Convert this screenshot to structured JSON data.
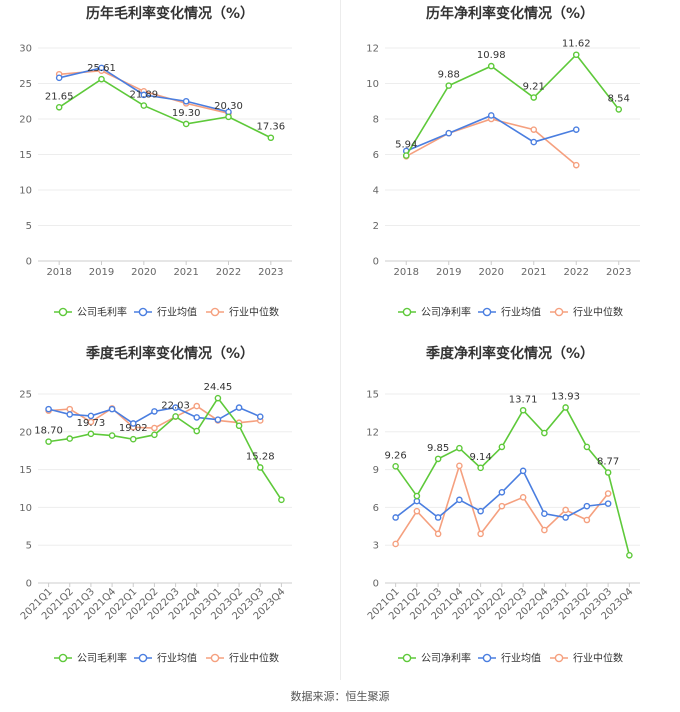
{
  "colors": {
    "company": "#5ec93a",
    "avg": "#4a7ee0",
    "median": "#f5a07f"
  },
  "legend": {
    "gross": [
      "公司毛利率",
      "行业均值",
      "行业中位数"
    ],
    "net": [
      "公司净利率",
      "行业均值",
      "行业中位数"
    ]
  },
  "footer": "数据来源：恒生聚源",
  "chart_data": [
    {
      "type": "line",
      "title": "历年毛利率变化情况（%）",
      "categories": [
        "2018",
        "2019",
        "2020",
        "2021",
        "2022",
        "2023"
      ],
      "ylim": [
        0,
        30
      ],
      "yticks": [
        0,
        5,
        10,
        15,
        20,
        25,
        30
      ],
      "series": [
        {
          "name": "公司毛利率",
          "values": [
            21.65,
            25.61,
            21.89,
            19.3,
            20.3,
            17.36
          ],
          "labels": [
            "21.65",
            "25.61",
            "21.89",
            "19.30",
            "20.30",
            "17.36"
          ]
        },
        {
          "name": "行业均值",
          "values": [
            25.8,
            27.2,
            23.4,
            22.5,
            21.0,
            null
          ]
        },
        {
          "name": "行业中位数",
          "values": [
            26.3,
            26.8,
            23.9,
            22.2,
            20.8,
            null
          ]
        }
      ],
      "legend_position": "bottom",
      "grid": "horizontal"
    },
    {
      "type": "line",
      "title": "历年净利率变化情况（%）",
      "categories": [
        "2018",
        "2019",
        "2020",
        "2021",
        "2022",
        "2023"
      ],
      "ylim": [
        0,
        12
      ],
      "yticks": [
        0,
        2,
        4,
        6,
        8,
        10,
        12
      ],
      "series": [
        {
          "name": "公司净利率",
          "values": [
            5.94,
            9.88,
            10.98,
            9.21,
            11.62,
            8.54
          ],
          "labels": [
            "5.94",
            "9.88",
            "10.98",
            "9.21",
            "11.62",
            "8.54"
          ]
        },
        {
          "name": "行业均值",
          "values": [
            6.2,
            7.2,
            8.2,
            6.7,
            7.4,
            null
          ]
        },
        {
          "name": "行业中位数",
          "values": [
            5.9,
            7.2,
            8.0,
            7.4,
            5.4,
            null
          ]
        }
      ],
      "legend_position": "bottom",
      "grid": "horizontal"
    },
    {
      "type": "line",
      "title": "季度毛利率变化情况（%）",
      "categories": [
        "2021Q1",
        "2021Q2",
        "2021Q3",
        "2021Q4",
        "2022Q1",
        "2022Q2",
        "2022Q3",
        "2022Q4",
        "2023Q1",
        "2023Q2",
        "2023Q3",
        "2023Q4"
      ],
      "ylim": [
        0,
        25
      ],
      "yticks": [
        0,
        5,
        10,
        15,
        20,
        25
      ],
      "series": [
        {
          "name": "公司毛利率",
          "values": [
            18.7,
            19.1,
            19.73,
            19.5,
            19.02,
            19.6,
            22.03,
            20.1,
            24.45,
            20.8,
            15.28,
            11.0
          ],
          "labels": [
            "18.70",
            "",
            "19.73",
            "",
            "19.02",
            "",
            "22.03",
            "",
            "24.45",
            "",
            "15.28",
            ""
          ]
        },
        {
          "name": "行业均值",
          "values": [
            23.0,
            22.3,
            22.1,
            23.0,
            21.1,
            22.7,
            23.2,
            21.9,
            21.6,
            23.2,
            22.0,
            null
          ]
        },
        {
          "name": "行业中位数",
          "values": [
            22.8,
            23.0,
            21.3,
            23.1,
            20.6,
            20.5,
            22.0,
            23.4,
            21.5,
            21.2,
            21.5,
            null
          ]
        }
      ],
      "legend_position": "bottom",
      "grid": "horizontal"
    },
    {
      "type": "line",
      "title": "季度净利率变化情况（%）",
      "categories": [
        "2021Q1",
        "2021Q2",
        "2021Q3",
        "2021Q4",
        "2022Q1",
        "2022Q2",
        "2022Q3",
        "2022Q4",
        "2023Q1",
        "2023Q2",
        "2023Q3",
        "2023Q4"
      ],
      "ylim": [
        0,
        15
      ],
      "yticks": [
        0,
        3,
        6,
        9,
        12,
        15
      ],
      "series": [
        {
          "name": "公司净利率",
          "values": [
            9.26,
            6.9,
            9.85,
            10.7,
            9.14,
            10.8,
            13.71,
            11.9,
            13.93,
            10.8,
            8.77,
            2.2
          ],
          "labels": [
            "9.26",
            "",
            "9.85",
            "",
            "9.14",
            "",
            "13.71",
            "",
            "13.93",
            "",
            "8.77",
            ""
          ]
        },
        {
          "name": "行业均值",
          "values": [
            5.2,
            6.5,
            5.2,
            6.6,
            5.7,
            7.2,
            8.9,
            5.5,
            5.2,
            6.1,
            6.3,
            null
          ]
        },
        {
          "name": "行业中位数",
          "values": [
            3.1,
            5.7,
            3.9,
            9.3,
            3.9,
            6.1,
            6.8,
            4.2,
            5.8,
            5.0,
            7.1,
            null
          ]
        }
      ],
      "legend_position": "bottom",
      "grid": "horizontal"
    }
  ]
}
